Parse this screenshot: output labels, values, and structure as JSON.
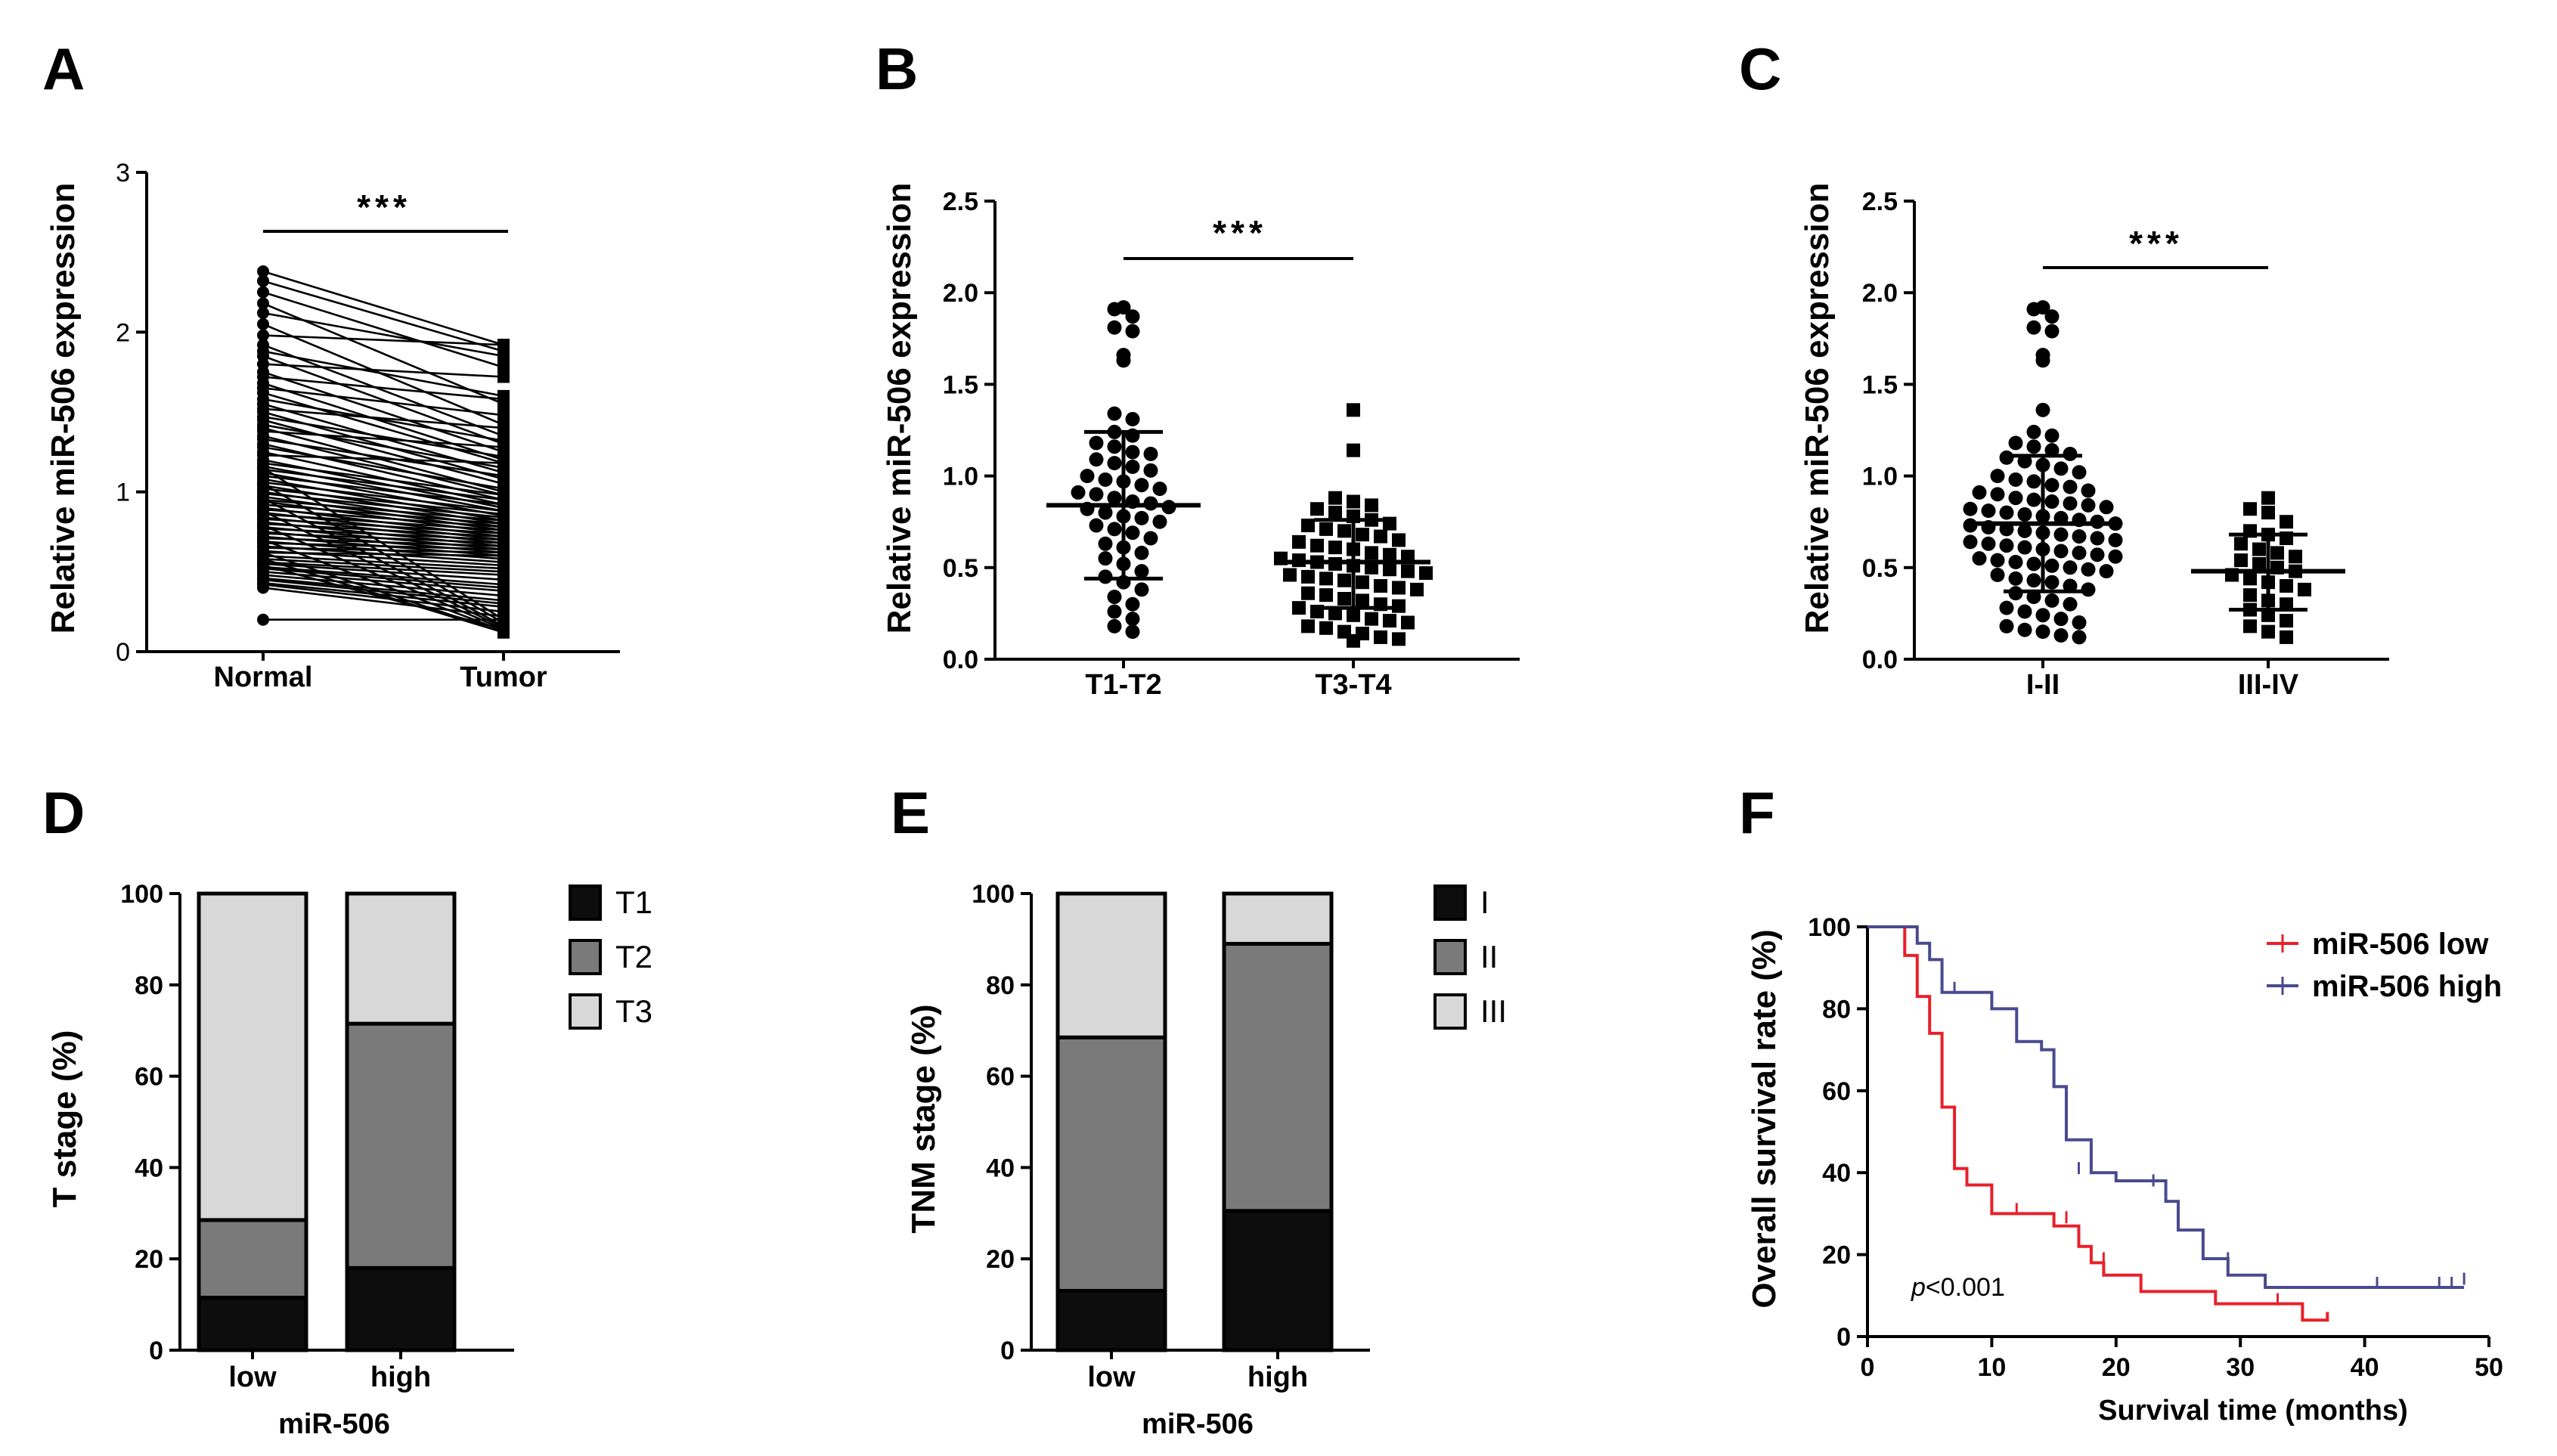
{
  "chart_data": [
    {
      "panel": "A",
      "type": "paired-line",
      "ylabel": "Relative miR-506 expression",
      "categories": [
        "Normal",
        "Tumor"
      ],
      "ylim": [
        0,
        3
      ],
      "yticks": [
        "0",
        "1",
        "2",
        "3"
      ],
      "significance": "***",
      "pairs": [
        [
          2.38,
          1.92
        ],
        [
          2.32,
          1.88
        ],
        [
          2.25,
          1.78
        ],
        [
          2.18,
          1.55
        ],
        [
          2.12,
          1.85
        ],
        [
          2.05,
          1.42
        ],
        [
          1.98,
          1.92
        ],
        [
          1.92,
          1.35
        ],
        [
          1.88,
          1.6
        ],
        [
          1.85,
          1.3
        ],
        [
          1.8,
          1.72
        ],
        [
          1.75,
          1.25
        ],
        [
          1.72,
          1.58
        ],
        [
          1.68,
          1.2
        ],
        [
          1.65,
          1.48
        ],
        [
          1.62,
          1.18
        ],
        [
          1.58,
          1.32
        ],
        [
          1.55,
          1.12
        ],
        [
          1.52,
          1.4
        ],
        [
          1.5,
          1.08
        ],
        [
          1.47,
          1.22
        ],
        [
          1.45,
          1.05
        ],
        [
          1.42,
          1.15
        ],
        [
          1.4,
          1.0
        ],
        [
          1.38,
          1.28
        ],
        [
          1.35,
          0.98
        ],
        [
          1.33,
          1.1
        ],
        [
          1.3,
          0.95
        ],
        [
          1.28,
          1.02
        ],
        [
          1.25,
          0.92
        ],
        [
          1.23,
          1.18
        ],
        [
          1.2,
          0.9
        ],
        [
          1.18,
          0.98
        ],
        [
          1.16,
          0.88
        ],
        [
          1.14,
          0.95
        ],
        [
          1.12,
          0.85
        ],
        [
          1.1,
          0.92
        ],
        [
          1.08,
          0.82
        ],
        [
          1.06,
          0.88
        ],
        [
          1.04,
          0.8
        ],
        [
          1.02,
          0.86
        ],
        [
          1.0,
          0.78
        ],
        [
          0.99,
          0.84
        ],
        [
          0.97,
          0.76
        ],
        [
          0.95,
          0.82
        ],
        [
          0.94,
          0.74
        ],
        [
          0.92,
          0.8
        ],
        [
          0.9,
          0.72
        ],
        [
          0.89,
          0.78
        ],
        [
          0.87,
          0.7
        ],
        [
          0.86,
          0.76
        ],
        [
          0.84,
          0.68
        ],
        [
          0.83,
          0.74
        ],
        [
          0.81,
          0.66
        ],
        [
          0.8,
          0.72
        ],
        [
          0.78,
          0.64
        ],
        [
          0.77,
          0.7
        ],
        [
          0.75,
          0.62
        ],
        [
          0.74,
          0.68
        ],
        [
          0.72,
          0.6
        ],
        [
          0.71,
          0.66
        ],
        [
          0.69,
          0.58
        ],
        [
          0.68,
          0.64
        ],
        [
          0.66,
          0.56
        ],
        [
          0.65,
          0.62
        ],
        [
          0.63,
          0.54
        ],
        [
          0.62,
          0.6
        ],
        [
          0.6,
          0.52
        ],
        [
          0.58,
          0.5
        ],
        [
          0.56,
          0.48
        ],
        [
          0.55,
          0.45
        ],
        [
          0.53,
          0.42
        ],
        [
          0.52,
          0.4
        ],
        [
          0.5,
          0.38
        ],
        [
          0.48,
          0.35
        ],
        [
          0.46,
          0.32
        ],
        [
          0.45,
          0.3
        ],
        [
          0.43,
          0.28
        ],
        [
          0.42,
          0.25
        ],
        [
          0.4,
          0.22
        ],
        [
          1.15,
          0.2
        ],
        [
          1.05,
          0.18
        ],
        [
          0.96,
          0.16
        ],
        [
          0.88,
          0.15
        ],
        [
          0.79,
          0.14
        ],
        [
          0.7,
          0.13
        ],
        [
          0.62,
          0.12
        ],
        [
          0.58,
          0.12
        ],
        [
          0.54,
          0.14
        ],
        [
          0.2,
          0.2
        ]
      ]
    },
    {
      "panel": "B",
      "type": "scatter",
      "ylabel": "Relative miR-506 expression",
      "categories": [
        "T1-T2",
        "T3-T4"
      ],
      "ylim": [
        0,
        2.5
      ],
      "yticks": [
        "0.0",
        "0.5",
        "1.0",
        "1.5",
        "2.0",
        "2.5"
      ],
      "significance": "***",
      "groups": [
        {
          "name": "T1-T2",
          "marker": "circle",
          "mean": 0.84,
          "sd_low": 0.44,
          "sd_high": 1.24,
          "values": [
            1.92,
            1.91,
            1.87,
            1.81,
            1.79,
            1.66,
            1.63,
            1.34,
            1.31,
            1.24,
            1.22,
            1.18,
            1.16,
            1.13,
            1.12,
            1.09,
            1.07,
            1.05,
            1.03,
            1.0,
            0.98,
            0.97,
            0.95,
            0.93,
            0.91,
            0.9,
            0.88,
            0.86,
            0.85,
            0.83,
            0.82,
            0.8,
            0.78,
            0.77,
            0.75,
            0.73,
            0.71,
            0.69,
            0.66,
            0.63,
            0.61,
            0.58,
            0.55,
            0.52,
            0.48,
            0.45,
            0.42,
            0.38,
            0.34,
            0.3,
            0.26,
            0.22,
            0.18,
            0.15
          ]
        },
        {
          "name": "T3-T4",
          "marker": "square",
          "mean": 0.53,
          "sd_low": 0.28,
          "sd_high": 0.76,
          "values": [
            1.36,
            1.14,
            0.88,
            0.86,
            0.84,
            0.82,
            0.8,
            0.78,
            0.76,
            0.74,
            0.73,
            0.71,
            0.7,
            0.68,
            0.67,
            0.65,
            0.64,
            0.62,
            0.61,
            0.6,
            0.58,
            0.57,
            0.56,
            0.55,
            0.54,
            0.53,
            0.52,
            0.51,
            0.5,
            0.49,
            0.48,
            0.47,
            0.46,
            0.45,
            0.44,
            0.43,
            0.42,
            0.4,
            0.39,
            0.38,
            0.36,
            0.35,
            0.33,
            0.32,
            0.3,
            0.29,
            0.28,
            0.26,
            0.25,
            0.24,
            0.22,
            0.21,
            0.2,
            0.18,
            0.17,
            0.15,
            0.14,
            0.12,
            0.11,
            0.1
          ]
        }
      ]
    },
    {
      "panel": "C",
      "type": "scatter",
      "ylabel": "Relative miR-506 expression",
      "categories": [
        "I-II",
        "III-IV"
      ],
      "ylim": [
        0,
        2.5
      ],
      "yticks": [
        "0.0",
        "0.5",
        "1.0",
        "1.5",
        "2.0",
        "2.5"
      ],
      "significance": "***",
      "groups": [
        {
          "name": "I-II",
          "marker": "circle",
          "mean": 0.74,
          "sd_low": 0.37,
          "sd_high": 1.11,
          "values": [
            1.92,
            1.91,
            1.87,
            1.81,
            1.79,
            1.66,
            1.63,
            1.36,
            1.24,
            1.22,
            1.18,
            1.16,
            1.14,
            1.12,
            1.1,
            1.08,
            1.06,
            1.04,
            1.02,
            1.0,
            0.98,
            0.97,
            0.95,
            0.94,
            0.92,
            0.91,
            0.9,
            0.88,
            0.87,
            0.86,
            0.85,
            0.84,
            0.83,
            0.82,
            0.81,
            0.8,
            0.79,
            0.78,
            0.77,
            0.76,
            0.75,
            0.74,
            0.73,
            0.72,
            0.71,
            0.7,
            0.69,
            0.68,
            0.67,
            0.66,
            0.65,
            0.64,
            0.63,
            0.62,
            0.61,
            0.6,
            0.59,
            0.58,
            0.57,
            0.56,
            0.55,
            0.54,
            0.53,
            0.52,
            0.51,
            0.5,
            0.49,
            0.48,
            0.46,
            0.44,
            0.43,
            0.42,
            0.4,
            0.38,
            0.36,
            0.34,
            0.32,
            0.3,
            0.28,
            0.26,
            0.24,
            0.22,
            0.2,
            0.18,
            0.16,
            0.15,
            0.13,
            0.12
          ]
        },
        {
          "name": "III-IV",
          "marker": "square",
          "mean": 0.48,
          "sd_low": 0.27,
          "sd_high": 0.68,
          "values": [
            0.88,
            0.82,
            0.8,
            0.75,
            0.7,
            0.68,
            0.66,
            0.63,
            0.6,
            0.58,
            0.56,
            0.54,
            0.52,
            0.5,
            0.48,
            0.46,
            0.44,
            0.42,
            0.4,
            0.38,
            0.35,
            0.32,
            0.3,
            0.27,
            0.24,
            0.21,
            0.18,
            0.15,
            0.12
          ]
        }
      ]
    },
    {
      "panel": "D",
      "type": "stacked-bar",
      "ylabel": "T stage (%)",
      "xlabel": "miR-506",
      "categories": [
        "low",
        "high"
      ],
      "ylim": [
        0,
        100
      ],
      "yticks": [
        "0",
        "20",
        "40",
        "60",
        "80",
        "100"
      ],
      "series": [
        {
          "name": "T1",
          "color": "#0d0d0d",
          "values": [
            11.5,
            18.0
          ]
        },
        {
          "name": "T2",
          "color": "#7a7a7a",
          "values": [
            17.0,
            53.5
          ]
        },
        {
          "name": "T3",
          "color": "#d8d8d8",
          "values": [
            71.5,
            28.5
          ]
        }
      ]
    },
    {
      "panel": "E",
      "type": "stacked-bar",
      "ylabel": "TNM stage (%)",
      "xlabel": "miR-506",
      "categories": [
        "low",
        "high"
      ],
      "ylim": [
        0,
        100
      ],
      "yticks": [
        "0",
        "20",
        "40",
        "60",
        "80",
        "100"
      ],
      "series": [
        {
          "name": "I",
          "color": "#0d0d0d",
          "values": [
            13.0,
            30.5
          ]
        },
        {
          "name": "II",
          "color": "#7a7a7a",
          "values": [
            55.5,
            58.5
          ]
        },
        {
          "name": "III",
          "color": "#d8d8d8",
          "values": [
            31.5,
            11.0
          ]
        }
      ]
    },
    {
      "panel": "F",
      "type": "line",
      "ylabel": "Overall survival rate (%)",
      "xlabel": "Survival time (months)",
      "xlim": [
        0,
        50
      ],
      "ylim": [
        0,
        100
      ],
      "xticks": [
        "0",
        "10",
        "20",
        "30",
        "40",
        "50"
      ],
      "yticks": [
        "0",
        "20",
        "40",
        "60",
        "80",
        "100"
      ],
      "annotation": {
        "italic": "p",
        "text": "<0.001"
      },
      "series": [
        {
          "name": "miR-506 low",
          "color": "#e8202a",
          "steps": [
            [
              0,
              100
            ],
            [
              3,
              100
            ],
            [
              3,
              93
            ],
            [
              4,
              93
            ],
            [
              4,
              83
            ],
            [
              5,
              83
            ],
            [
              5,
              74
            ],
            [
              6,
              74
            ],
            [
              6,
              56
            ],
            [
              7,
              56
            ],
            [
              7,
              41
            ],
            [
              8,
              41
            ],
            [
              8,
              37
            ],
            [
              10,
              37
            ],
            [
              10,
              30
            ],
            [
              15,
              30
            ],
            [
              15,
              27
            ],
            [
              17,
              27
            ],
            [
              17,
              22
            ],
            [
              18,
              22
            ],
            [
              18,
              18
            ],
            [
              19,
              18
            ],
            [
              19,
              15
            ],
            [
              22,
              15
            ],
            [
              22,
              11
            ],
            [
              28,
              11
            ],
            [
              28,
              8
            ],
            [
              35,
              8
            ],
            [
              35,
              4
            ],
            [
              37,
              4
            ],
            [
              37,
              6
            ]
          ],
          "censors": [
            [
              12,
              30
            ],
            [
              16,
              28
            ],
            [
              19,
              18
            ],
            [
              33,
              8
            ]
          ]
        },
        {
          "name": "miR-506 high",
          "color": "#4a4a90",
          "steps": [
            [
              0,
              100
            ],
            [
              4,
              100
            ],
            [
              4,
              96
            ],
            [
              5,
              96
            ],
            [
              5,
              92
            ],
            [
              6,
              92
            ],
            [
              6,
              84
            ],
            [
              10,
              84
            ],
            [
              10,
              80
            ],
            [
              12,
              80
            ],
            [
              12,
              72
            ],
            [
              14,
              72
            ],
            [
              14,
              70
            ],
            [
              15,
              70
            ],
            [
              15,
              61
            ],
            [
              16,
              61
            ],
            [
              16,
              48
            ],
            [
              18,
              48
            ],
            [
              18,
              40
            ],
            [
              20,
              40
            ],
            [
              20,
              38
            ],
            [
              24,
              38
            ],
            [
              24,
              33
            ],
            [
              25,
              33
            ],
            [
              25,
              26
            ],
            [
              27,
              26
            ],
            [
              27,
              19
            ],
            [
              29,
              19
            ],
            [
              29,
              15
            ],
            [
              32,
              15
            ],
            [
              32,
              12
            ],
            [
              48,
              12
            ]
          ],
          "censors": [
            [
              7,
              84
            ],
            [
              17,
              40
            ],
            [
              23,
              37
            ],
            [
              29,
              18
            ],
            [
              41,
              12
            ],
            [
              46,
              12
            ],
            [
              47,
              12
            ],
            [
              48,
              13
            ]
          ]
        }
      ]
    }
  ],
  "panels": {
    "A": {
      "letter": "A",
      "title": "Relative miR-506 expression",
      "sig": "***"
    },
    "B": {
      "letter": "B",
      "title": "Relative miR-506 expression",
      "sig": "***"
    },
    "C": {
      "letter": "C",
      "title": "Relative miR-506 expression",
      "sig": "***"
    },
    "D": {
      "letter": "D",
      "title": "T stage (%)",
      "xtitle": "miR-506"
    },
    "E": {
      "letter": "E",
      "title": "TNM stage (%)",
      "xtitle": "miR-506"
    },
    "F": {
      "letter": "F",
      "title": "Overall survival rate (%)",
      "xtitle": "Survival time (months)"
    }
  }
}
